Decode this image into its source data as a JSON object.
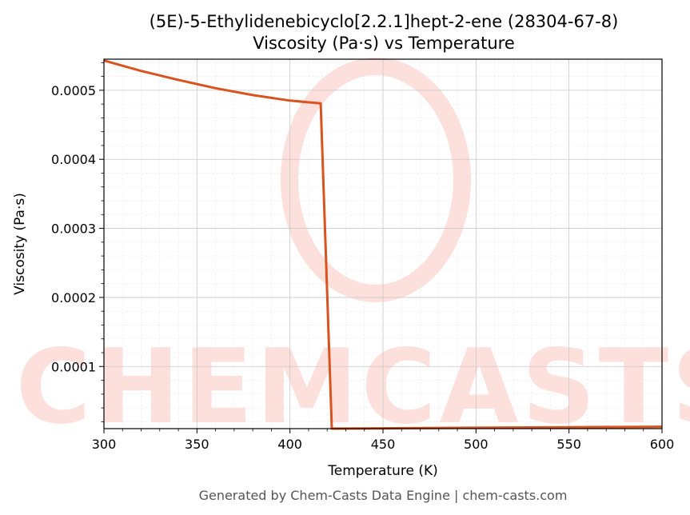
{
  "chart_data": {
    "type": "line",
    "title_line1": "(5E)-5-Ethylidenebicyclo[2.2.1]hept-2-ene (28304-67-8)",
    "title_line2": "Viscosity (Pa·s) vs Temperature",
    "xlabel": "Temperature (K)",
    "ylabel": "Viscosity (Pa·s)",
    "xlim": [
      300,
      600
    ],
    "ylim": [
      1e-05,
      0.000545
    ],
    "x_ticks": [
      300,
      350,
      400,
      450,
      500,
      550,
      600
    ],
    "x_tick_labels": [
      "300",
      "350",
      "400",
      "450",
      "500",
      "550",
      "600"
    ],
    "y_ticks": [
      0.0001,
      0.0002,
      0.0003,
      0.0004,
      0.0005
    ],
    "y_tick_labels": [
      "0.0001",
      "0.0002",
      "0.0003",
      "0.0004",
      "0.0005"
    ],
    "grid": true,
    "line_color": "#d9531e",
    "series": [
      {
        "x": [
          300,
          320,
          340,
          360,
          380,
          400,
          416.5,
          422.5,
          450,
          500,
          550,
          600
        ],
        "values": [
          0.000543,
          0.000528,
          0.000515,
          0.000503,
          0.000493,
          0.000485,
          0.000481,
          1e-05,
          1.05e-05,
          1.13e-05,
          1.21e-05,
          1.28e-05
        ]
      }
    ]
  },
  "watermark": {
    "text": "CHEMCASTS",
    "color": "#fde0dc"
  },
  "footer": {
    "text": "Generated by Chem-Casts Data Engine | chem-casts.com"
  }
}
